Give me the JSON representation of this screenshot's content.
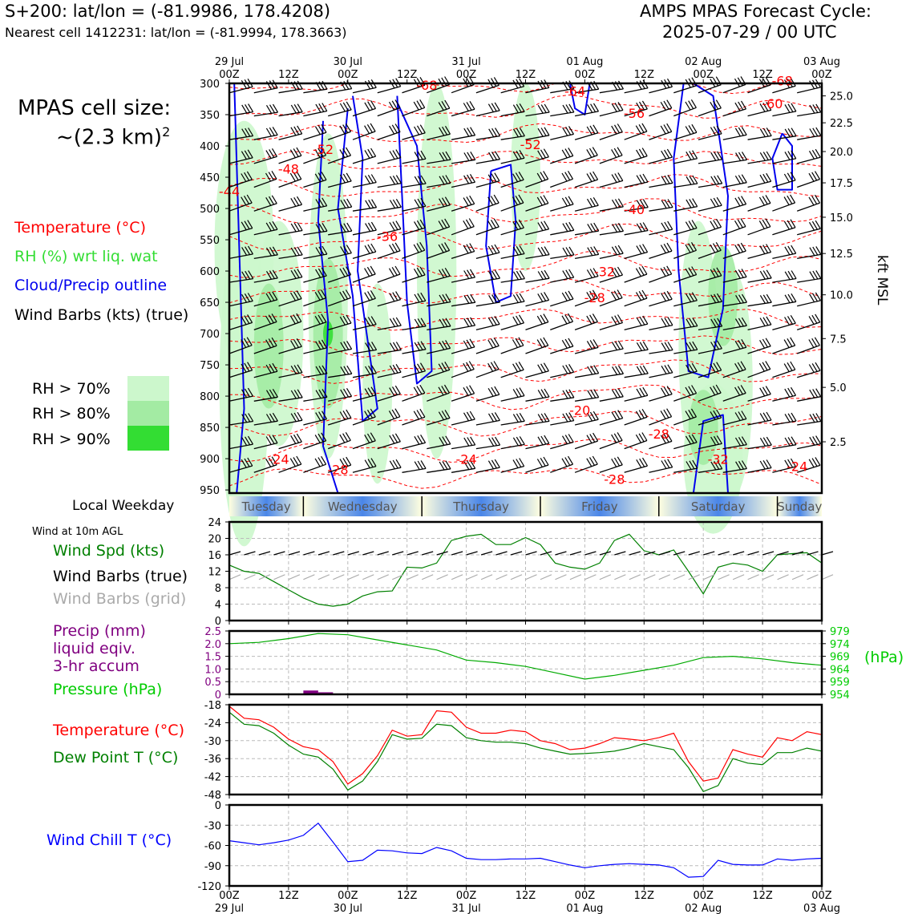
{
  "header": {
    "line1": "S+200: lat/lon = (-81.9986, 178.4208)",
    "line2": "Nearest cell 1412231: lat/lon = (-81.9994, 178.3663)",
    "right_line1": "AMPS MPAS Forecast Cycle:",
    "right_line2": "2025-07-29 / 00 UTC"
  },
  "cell_size": {
    "line1": "MPAS cell size:",
    "line2": "~(2.3 km)",
    "sup": "2"
  },
  "legend": {
    "temperature": "Temperature (°C)",
    "rh": "RH (%) wrt liq. wat",
    "cloud": "Cloud/Precip outline",
    "wind": "Wind Barbs (kts) (true)",
    "rh70": "RH > 70%",
    "rh80": "RH > 80%",
    "rh90": "RH > 90%",
    "colors": {
      "temperature": "#ff0000",
      "rh": "#33dd33",
      "cloud": "#0000ee",
      "wind": "#000000",
      "rh70": "#ccf7cc",
      "rh80": "#a3eba3",
      "rh90": "#33dd33"
    }
  },
  "weekday": {
    "label": "Local Weekday",
    "days": [
      "Tuesday",
      "Wednesday",
      "Thursday",
      "Friday",
      "Saturday",
      "Sunday"
    ]
  },
  "side_labels": {
    "wind10m": "Wind at 10m AGL",
    "wind_spd": "Wind Spd (kts)",
    "wind_barbs_true": "Wind Barbs (true)",
    "wind_barbs_grid": "Wind Barbs (grid)",
    "precip1": "Precip (mm)",
    "precip2": "liquid eqiv.",
    "precip3": "3-hr accum",
    "pressure": "Pressure (hPa)",
    "pressure_unit": "(hPa)",
    "temperature": "Temperature (°C)",
    "dewpoint": "Dew Point T (°C)",
    "windchill": "Wind Chill T (°C)",
    "kft": "kft MSL",
    "colors": {
      "wind_spd": "#008000",
      "wind_barbs_true": "#000000",
      "wind_barbs_grid": "#aaaaaa",
      "precip": "#800080",
      "pressure": "#00aa00",
      "temperature": "#ff0000",
      "dewpoint": "#008000",
      "windchill": "#0000ff"
    }
  },
  "time_axis": {
    "top_ticks": [
      [
        "29 Jul",
        "00Z"
      ],
      [
        "",
        "12Z"
      ],
      [
        "30 Jul",
        "00Z"
      ],
      [
        "",
        "12Z"
      ],
      [
        "31 Jul",
        "00Z"
      ],
      [
        "",
        "12Z"
      ],
      [
        "01 Aug",
        "00Z"
      ],
      [
        "",
        "12Z"
      ],
      [
        "02 Aug",
        "00Z"
      ],
      [
        "",
        "12Z"
      ],
      [
        "03 Aug",
        "00Z"
      ]
    ],
    "bottom_ticks": [
      [
        "00Z",
        "29 Jul"
      ],
      [
        "12Z",
        ""
      ],
      [
        "00Z",
        "30 Jul"
      ],
      [
        "12Z",
        ""
      ],
      [
        "00Z",
        "31 Jul"
      ],
      [
        "12Z",
        ""
      ],
      [
        "00Z",
        "01 Aug"
      ],
      [
        "12Z",
        ""
      ],
      [
        "00Z",
        "02 Aug"
      ],
      [
        "12Z",
        ""
      ],
      [
        "00Z",
        "03 Aug"
      ]
    ]
  },
  "chart_data": [
    {
      "type": "heatmap",
      "panel": "time-pressure cross section",
      "y_axis": {
        "label": "",
        "ticks": [
          300,
          350,
          400,
          450,
          500,
          550,
          600,
          650,
          700,
          750,
          800,
          850,
          900,
          950
        ],
        "range": [
          300,
          955
        ]
      },
      "y2_axis": {
        "label": "kft MSL",
        "ticks": [
          [
            "25.0",
            320
          ],
          [
            "22.5",
            363
          ],
          [
            "20.0",
            409
          ],
          [
            "17.5",
            459
          ],
          [
            "15.0",
            514
          ],
          [
            "12.5",
            572
          ],
          [
            "10.0",
            638
          ],
          [
            "7.5",
            708
          ],
          [
            "5.0",
            786
          ],
          [
            "2.5",
            873
          ]
        ]
      },
      "temperature_contour_labels": [
        {
          "text": "-68",
          "t": 40,
          "p": 310
        },
        {
          "text": "-68",
          "t": 112,
          "p": 303
        },
        {
          "text": "-64",
          "t": 70,
          "p": 320
        },
        {
          "text": "-60",
          "t": 110,
          "p": 340
        },
        {
          "text": "-56",
          "t": 82,
          "p": 355
        },
        {
          "text": "-52",
          "t": 19,
          "p": 413
        },
        {
          "text": "-52",
          "t": 61,
          "p": 405
        },
        {
          "text": "-48",
          "t": 12,
          "p": 444
        },
        {
          "text": "-44",
          "t": 0,
          "p": 480
        },
        {
          "text": "-40",
          "t": 82,
          "p": 509
        },
        {
          "text": "-36",
          "t": 32,
          "p": 552
        },
        {
          "text": "-32",
          "t": 76,
          "p": 608
        },
        {
          "text": "-28",
          "t": 74,
          "p": 650
        },
        {
          "text": "-20",
          "t": 71,
          "p": 830
        },
        {
          "text": "-28",
          "t": 87,
          "p": 868
        },
        {
          "text": "-24",
          "t": 10,
          "p": 908
        },
        {
          "text": "-28",
          "t": 22,
          "p": 925
        },
        {
          "text": "-24",
          "t": 48,
          "p": 908
        },
        {
          "text": "-28",
          "t": 78,
          "p": 940
        },
        {
          "text": "-32",
          "t": 99,
          "p": 908
        },
        {
          "text": "-24",
          "t": 115,
          "p": 920
        }
      ]
    },
    {
      "type": "line",
      "panel": "wind speed",
      "x_unit": "forecast hour",
      "ylim": [
        0,
        24
      ],
      "yticks": [
        0,
        4,
        8,
        12,
        16,
        20,
        24
      ],
      "x": [
        0,
        3,
        6,
        9,
        12,
        15,
        18,
        21,
        24,
        27,
        30,
        33,
        36,
        39,
        42,
        45,
        48,
        51,
        54,
        57,
        60,
        63,
        66,
        69,
        72,
        75,
        78,
        81,
        84,
        87,
        90,
        93,
        96,
        99,
        102,
        105,
        108,
        111,
        114,
        117,
        120
      ],
      "series": [
        {
          "name": "Wind Spd (kts)",
          "color": "#008000",
          "values": [
            13.5,
            12,
            11.5,
            9.5,
            7.5,
            5.5,
            4,
            3.5,
            4,
            6,
            7,
            7.2,
            13,
            12.8,
            14,
            19.5,
            20.5,
            21,
            18.5,
            18.5,
            20.2,
            18.5,
            14,
            13,
            12.5,
            14,
            19.5,
            21,
            17,
            16,
            17.2,
            12,
            6.5,
            13,
            14,
            13.5,
            12,
            16,
            16.3,
            16.5,
            14
          ]
        }
      ]
    },
    {
      "type": "line",
      "panel": "pressure and precip",
      "x_unit": "forecast hour",
      "ylim": [
        0,
        2.5
      ],
      "yticks": [
        0,
        0.5,
        1.0,
        1.5,
        2.0,
        2.5
      ],
      "y2lim": [
        954,
        979
      ],
      "y2ticks": [
        954,
        959,
        964,
        969,
        974,
        979
      ],
      "x": [
        0,
        6,
        12,
        18,
        24,
        30,
        36,
        42,
        48,
        54,
        60,
        66,
        72,
        78,
        84,
        90,
        96,
        102,
        108,
        114,
        120
      ],
      "series": [
        {
          "name": "Pressure (hPa)",
          "color": "#00aa00",
          "axis": "right",
          "values": [
            974,
            974.5,
            976,
            978,
            977.5,
            975.5,
            973.5,
            971.5,
            967.5,
            966.5,
            965,
            962.5,
            960,
            961.5,
            963.5,
            965.5,
            968.5,
            969,
            968,
            966.5,
            965.5
          ]
        },
        {
          "name": "Precip (mm)",
          "color": "#800080",
          "axis": "left",
          "bars": [
            [
              15,
              0.15
            ],
            [
              18,
              0.08
            ]
          ]
        }
      ]
    },
    {
      "type": "line",
      "panel": "temperature and dew point",
      "x_unit": "forecast hour",
      "ylim": [
        -48,
        -18
      ],
      "yticks": [
        -48,
        -42,
        -36,
        -30,
        -24,
        -18
      ],
      "x": [
        0,
        3,
        6,
        9,
        12,
        15,
        18,
        21,
        24,
        27,
        30,
        33,
        36,
        39,
        42,
        45,
        48,
        51,
        54,
        57,
        60,
        63,
        66,
        69,
        72,
        75,
        78,
        81,
        84,
        87,
        90,
        93,
        96,
        99,
        102,
        105,
        108,
        111,
        114,
        117,
        120
      ],
      "series": [
        {
          "name": "Temperature (°C)",
          "color": "#ff0000",
          "values": [
            -18.5,
            -22.5,
            -23,
            -25.5,
            -29.5,
            -32,
            -33,
            -37,
            -44.5,
            -41,
            -35,
            -26.5,
            -28.5,
            -28,
            -20,
            -20.5,
            -25.5,
            -27.5,
            -27.5,
            -26.5,
            -27,
            -30,
            -31,
            -33,
            -32.5,
            -31,
            -29,
            -29.5,
            -30,
            -29,
            -27.5,
            -37,
            -43.5,
            -42.5,
            -33,
            -34.5,
            -35.5,
            -29,
            -30,
            -27,
            -28
          ]
        },
        {
          "name": "Dew Point T (°C)",
          "color": "#008000",
          "values": [
            -20.5,
            -24.5,
            -25,
            -27.5,
            -31.5,
            -34.5,
            -35.5,
            -39.5,
            -46.5,
            -43.5,
            -37,
            -28,
            -29.5,
            -29.2,
            -24.5,
            -25,
            -29,
            -30,
            -30.5,
            -30.5,
            -31,
            -32.5,
            -33.5,
            -34.5,
            -34.3,
            -34,
            -33.5,
            -32.5,
            -31,
            -32,
            -33,
            -39,
            -47,
            -45,
            -36,
            -37.5,
            -38,
            -34,
            -34,
            -32.5,
            -33.5
          ]
        }
      ]
    },
    {
      "type": "line",
      "panel": "wind chill",
      "x_unit": "forecast hour",
      "ylim": [
        -120,
        0
      ],
      "yticks": [
        -120,
        -90,
        -60,
        -30,
        0
      ],
      "x": [
        0,
        3,
        6,
        9,
        12,
        15,
        18,
        21,
        24,
        27,
        30,
        33,
        36,
        39,
        42,
        45,
        48,
        51,
        54,
        57,
        60,
        63,
        66,
        69,
        72,
        75,
        78,
        81,
        84,
        87,
        90,
        93,
        96,
        99,
        102,
        105,
        108,
        111,
        114,
        117,
        120
      ],
      "series": [
        {
          "name": "Wind Chill T (°C)",
          "color": "#0000ff",
          "values": [
            -53,
            -56,
            -59,
            -56,
            -52,
            -45,
            -27,
            -55,
            -84,
            -82,
            -67,
            -68,
            -71,
            -72,
            -63,
            -68,
            -79,
            -81,
            -81,
            -80,
            -80,
            -79,
            -84,
            -89,
            -93,
            -90,
            -88,
            -87,
            -88,
            -89,
            -93,
            -107,
            -106,
            -82,
            -88,
            -89,
            -89,
            -80,
            -82,
            -80,
            -79
          ]
        }
      ]
    }
  ]
}
